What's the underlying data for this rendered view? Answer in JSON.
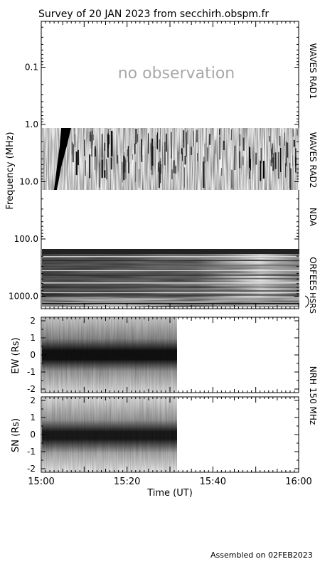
{
  "title": "Survey of 20 JAN 2023 from secchirh.obspm.fr",
  "footer": "Assembled on 02FEB2023",
  "chart_data": [
    {
      "type": "heatmap",
      "name": "spectrogram",
      "ylabel": "Frequency (MHz)",
      "yscale": "log",
      "yticks": [
        "0.1",
        "1.0",
        "10.0",
        "100.0",
        "1000.0"
      ],
      "xlim": [
        "15:00",
        "16:00"
      ],
      "bands": [
        {
          "label": "WAVES RAD1",
          "status": "no observation"
        },
        {
          "label": "WAVES RAD2"
        },
        {
          "label": "NDA"
        },
        {
          "label": "ORFEES"
        },
        {
          "label": "HSRS"
        }
      ]
    },
    {
      "type": "heatmap",
      "name": "nrh-ew",
      "ylabel": "EW (Rs)",
      "ylim": [
        -2,
        2
      ],
      "yticks": [
        "2",
        "1",
        "0",
        "-1",
        "-2"
      ],
      "data_end": "15:31"
    },
    {
      "type": "heatmap",
      "name": "nrh-sn",
      "ylabel": "SN (Rs)",
      "ylim": [
        -2,
        2
      ],
      "yticks": [
        "2",
        "1",
        "0",
        "-1",
        "-2"
      ],
      "data_end": "15:31"
    }
  ],
  "nrh_label": "NRH 150 MHz",
  "xaxis": {
    "label": "Time (UT)",
    "ticks": [
      "15:00",
      "15:20",
      "15:40",
      "16:00"
    ]
  }
}
